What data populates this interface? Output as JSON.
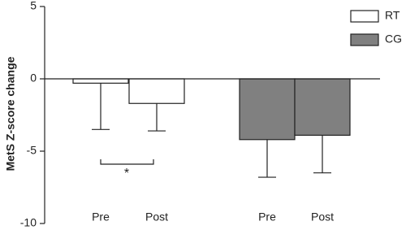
{
  "chart_data": {
    "type": "bar",
    "y_label": "MetS Z-score change",
    "categories": [
      "Pre",
      "Post",
      "Pre",
      "Post"
    ],
    "series": [
      {
        "name": "RT",
        "color": "#ffffff",
        "values": [
          -0.3,
          -1.7,
          null,
          null
        ],
        "errors": [
          3.2,
          1.9,
          null,
          null
        ]
      },
      {
        "name": "CG",
        "color": "#808080",
        "values": [
          null,
          null,
          -4.2,
          -3.9
        ],
        "errors": [
          null,
          null,
          2.6,
          2.6
        ]
      }
    ],
    "annotation": "*",
    "ylim": [
      -10,
      5
    ],
    "yticks": [
      -10,
      -5,
      0,
      5
    ],
    "legend": "upper right"
  }
}
